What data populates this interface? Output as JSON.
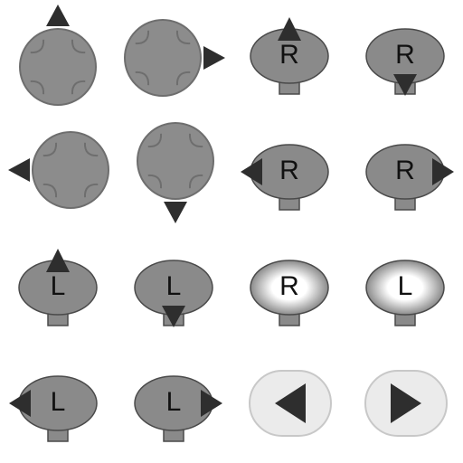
{
  "sheet": {
    "colors": {
      "pad_fill": "#8c8c8c",
      "pad_stroke": "#6e6e6e",
      "arrow": "#2e2e2e",
      "stick_fill": "#8a8a8a",
      "stick_stroke": "#4a4a4a",
      "stick_glow": "#ffffff",
      "button_bg": "#ebebeb",
      "button_stroke": "#c8c8c8",
      "text": "#111111"
    },
    "icons": [
      {
        "kind": "dpad",
        "dir": "up",
        "name": "dpad-up-icon"
      },
      {
        "kind": "dpad",
        "dir": "right",
        "name": "dpad-right-icon"
      },
      {
        "kind": "stick",
        "letter": "R",
        "dir": "up",
        "name": "right-stick-up-icon"
      },
      {
        "kind": "stick",
        "letter": "R",
        "dir": "down",
        "name": "right-stick-down-icon"
      },
      {
        "kind": "dpad",
        "dir": "left",
        "name": "dpad-left-icon"
      },
      {
        "kind": "dpad",
        "dir": "down",
        "name": "dpad-down-icon"
      },
      {
        "kind": "stick",
        "letter": "R",
        "dir": "left",
        "name": "right-stick-left-icon"
      },
      {
        "kind": "stick",
        "letter": "R",
        "dir": "right",
        "name": "right-stick-right-icon"
      },
      {
        "kind": "stick",
        "letter": "L",
        "dir": "up",
        "name": "left-stick-up-icon"
      },
      {
        "kind": "stick",
        "letter": "L",
        "dir": "down",
        "name": "left-stick-down-icon"
      },
      {
        "kind": "stick",
        "letter": "R",
        "dir": "press",
        "name": "right-stick-press-icon"
      },
      {
        "kind": "stick",
        "letter": "L",
        "dir": "press",
        "name": "left-stick-press-icon"
      },
      {
        "kind": "stick",
        "letter": "L",
        "dir": "left",
        "name": "left-stick-left-icon"
      },
      {
        "kind": "stick",
        "letter": "L",
        "dir": "right",
        "name": "left-stick-right-icon"
      },
      {
        "kind": "button",
        "dir": "left",
        "name": "arrow-left-button-icon"
      },
      {
        "kind": "button",
        "dir": "right",
        "name": "arrow-right-button-icon"
      }
    ]
  }
}
